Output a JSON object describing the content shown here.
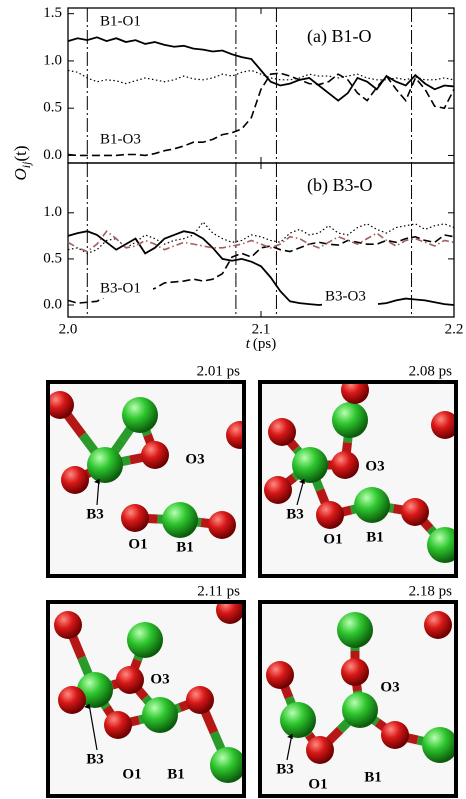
{
  "chart_data": [
    {
      "type": "line",
      "title": "(a) B1-O",
      "ylabel": "O",
      "ylabel_sub": "ij",
      "ylabel_tail": "(t)",
      "x": [
        2.0,
        2.005,
        2.01,
        2.015,
        2.02,
        2.025,
        2.03,
        2.035,
        2.04,
        2.045,
        2.05,
        2.055,
        2.06,
        2.065,
        2.07,
        2.075,
        2.08,
        2.085,
        2.09,
        2.095,
        2.1,
        2.105,
        2.11,
        2.115,
        2.12,
        2.125,
        2.13,
        2.135,
        2.14,
        2.145,
        2.15,
        2.155,
        2.16,
        2.165,
        2.17,
        2.175,
        2.18,
        2.185,
        2.19,
        2.195,
        2.2
      ],
      "xlim": [
        2.0,
        2.2
      ],
      "xticks": [
        2.0,
        2.1,
        2.2
      ],
      "ylim": [
        -0.08,
        1.56
      ],
      "yticks": [
        {
          "value": 0,
          "label": "0.0"
        },
        0.5,
        {
          "value": 1,
          "label": "1.0"
        },
        1.5
      ],
      "vlines": [
        2.01,
        2.087,
        2.108,
        2.178
      ],
      "series": [
        {
          "name": "B1-O1",
          "color": "#000000",
          "dash": "solid",
          "values": [
            1.21,
            1.24,
            1.22,
            1.25,
            1.21,
            1.24,
            1.2,
            1.22,
            1.18,
            1.2,
            1.17,
            1.15,
            1.16,
            1.13,
            1.12,
            1.1,
            1.11,
            1.07,
            1.04,
            1.02,
            0.9,
            0.78,
            0.74,
            0.76,
            0.8,
            0.82,
            0.74,
            0.66,
            0.58,
            0.66,
            0.82,
            0.78,
            0.7,
            0.84,
            0.78,
            0.74,
            0.85,
            0.76,
            0.7,
            0.74,
            0.73
          ]
        },
        {
          "name": "B1-O3",
          "color": "#000000",
          "dash": "dashed",
          "values": [
            0.01,
            0.0,
            0.0,
            0.0,
            0.0,
            0.0,
            0.01,
            0.01,
            0.0,
            0.02,
            0.05,
            0.07,
            0.1,
            0.14,
            0.14,
            0.17,
            0.22,
            0.24,
            0.28,
            0.4,
            0.7,
            0.86,
            0.87,
            0.84,
            0.8,
            0.76,
            0.75,
            0.78,
            0.86,
            0.8,
            0.66,
            0.58,
            0.72,
            0.84,
            0.7,
            0.58,
            0.82,
            0.7,
            0.52,
            0.5,
            0.7
          ]
        },
        {
          "color": "#000000",
          "dash": "dotted",
          "values": [
            0.9,
            0.88,
            0.82,
            0.78,
            0.8,
            0.79,
            0.76,
            0.79,
            0.82,
            0.8,
            0.78,
            0.8,
            0.84,
            0.81,
            0.8,
            0.82,
            0.86,
            0.84,
            0.88,
            0.9,
            0.86,
            0.82,
            0.8,
            0.8,
            0.82,
            0.86,
            0.84,
            0.84,
            0.82,
            0.84,
            0.86,
            0.82,
            0.8,
            0.8,
            0.82,
            0.8,
            0.83,
            0.8,
            0.8,
            0.82,
            0.8
          ]
        }
      ]
    },
    {
      "type": "line",
      "title": "(b) B3-O",
      "xlabel_var": "t",
      "xlabel_unit": "(ps)",
      "x": [
        2.0,
        2.005,
        2.01,
        2.015,
        2.02,
        2.025,
        2.03,
        2.035,
        2.04,
        2.045,
        2.05,
        2.055,
        2.06,
        2.065,
        2.07,
        2.075,
        2.08,
        2.085,
        2.09,
        2.095,
        2.1,
        2.105,
        2.11,
        2.115,
        2.12,
        2.125,
        2.13,
        2.135,
        2.14,
        2.145,
        2.15,
        2.155,
        2.16,
        2.165,
        2.17,
        2.175,
        2.18,
        2.185,
        2.19,
        2.195,
        2.2
      ],
      "xlim": [
        2.0,
        2.2
      ],
      "xticks": [
        {
          "value": 2,
          "label": "2.0"
        },
        2.1,
        2.2
      ],
      "ylim": [
        -0.13,
        1.54
      ],
      "yticks": [
        {
          "value": 0,
          "label": "0.0"
        },
        0.5,
        {
          "value": 1,
          "label": "1.0"
        }
      ],
      "vlines": [
        2.01,
        2.087,
        2.108,
        2.178
      ],
      "series": [
        {
          "name": "B3-O1",
          "color": "#000000",
          "dash": "dashed",
          "values": [
            0.05,
            0.02,
            0.03,
            0.04,
            0.1,
            0.15,
            0.18,
            0.17,
            0.15,
            0.18,
            0.24,
            0.25,
            0.26,
            0.28,
            0.26,
            0.28,
            0.34,
            0.52,
            0.56,
            0.52,
            0.62,
            0.64,
            0.6,
            0.58,
            0.62,
            0.66,
            0.68,
            0.66,
            0.65,
            0.7,
            0.68,
            0.66,
            0.66,
            0.7,
            0.68,
            0.72,
            0.74,
            0.7,
            0.68,
            0.76,
            0.74
          ]
        },
        {
          "name": "B3-O3",
          "color": "#000000",
          "dash": "solid",
          "values": [
            0.75,
            0.78,
            0.8,
            0.76,
            0.68,
            0.6,
            0.66,
            0.72,
            0.56,
            0.62,
            0.72,
            0.76,
            0.8,
            0.78,
            0.72,
            0.62,
            0.5,
            0.48,
            0.5,
            0.47,
            0.42,
            0.3,
            0.15,
            0.04,
            0.02,
            0.01,
            0.0,
            0.01,
            0.0,
            0.0,
            0.01,
            0.0,
            0.01,
            0.02,
            0.05,
            0.07,
            0.06,
            0.05,
            0.03,
            0.01,
            0.0
          ]
        },
        {
          "color": "#000000",
          "dash": "dotted",
          "values": [
            0.6,
            0.62,
            0.56,
            0.6,
            0.7,
            0.72,
            0.62,
            0.68,
            0.76,
            0.72,
            0.66,
            0.7,
            0.72,
            0.76,
            0.9,
            0.78,
            0.72,
            0.68,
            0.7,
            0.76,
            0.74,
            0.7,
            0.68,
            0.78,
            0.82,
            0.76,
            0.78,
            0.86,
            0.78,
            0.76,
            0.84,
            0.88,
            0.82,
            0.78,
            0.84,
            0.86,
            0.88,
            0.82,
            0.86,
            0.88,
            0.84
          ]
        },
        {
          "color": "#a06060",
          "dash": "dashdot",
          "values": [
            0.68,
            0.62,
            0.58,
            0.66,
            0.8,
            0.72,
            0.62,
            0.64,
            0.7,
            0.66,
            0.6,
            0.64,
            0.68,
            0.66,
            0.64,
            0.62,
            0.62,
            0.64,
            0.66,
            0.7,
            0.66,
            0.62,
            0.66,
            0.74,
            0.72,
            0.66,
            0.62,
            0.68,
            0.74,
            0.7,
            0.66,
            0.72,
            0.78,
            0.7,
            0.64,
            0.7,
            0.72,
            0.68,
            0.64,
            0.7,
            0.68
          ]
        }
      ]
    }
  ],
  "snapshots": [
    {
      "time": "2.01 ps",
      "labels": [
        "O3",
        "B3",
        "O1",
        "B1"
      ]
    },
    {
      "time": "2.08 ps",
      "labels": [
        "O3",
        "B3",
        "O1",
        "B1"
      ]
    },
    {
      "time": "2.11 ps",
      "labels": [
        "O3",
        "B3",
        "O1",
        "B1"
      ]
    },
    {
      "time": "2.18 ps",
      "labels": [
        "O3",
        "B3",
        "O1",
        "B1"
      ]
    }
  ]
}
